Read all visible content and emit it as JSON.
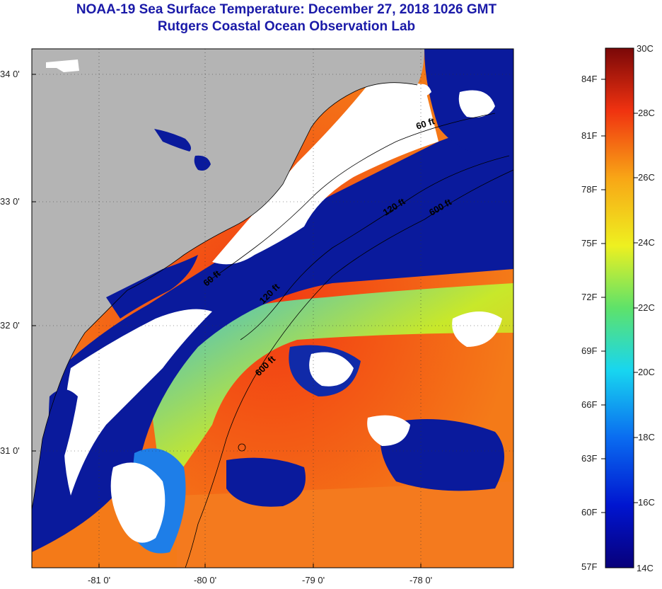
{
  "header": {
    "title": "NOAA-19 Sea Surface Temperature:  December 27, 2018 1026 GMT",
    "subtitle": "Rutgers Coastal Ocean Observation Lab"
  },
  "map": {
    "lat_labels": [
      "34 0'",
      "33 0'",
      "32 0'",
      "31 0'"
    ],
    "lon_labels": [
      "-81 0'",
      "-80 0'",
      "-79 0'",
      "-78 0'"
    ],
    "contours": [
      "60 ft",
      "120 ft",
      "600 ft",
      "60 ft",
      "120 ft",
      "600 ft"
    ],
    "colors": {
      "land": "#b4b4b4",
      "cloud": "#ffffff",
      "cold": "#0a1a9c",
      "warm": "#f24a16"
    }
  },
  "colorbar": {
    "fahrenheit": [
      "84F",
      "81F",
      "78F",
      "75F",
      "72F",
      "69F",
      "66F",
      "63F",
      "60F",
      "57F"
    ],
    "celsius": [
      "30C",
      "28C",
      "26C",
      "24C",
      "22C",
      "20C",
      "18C",
      "16C",
      "14C"
    ],
    "range_celsius": [
      14,
      30
    ]
  }
}
